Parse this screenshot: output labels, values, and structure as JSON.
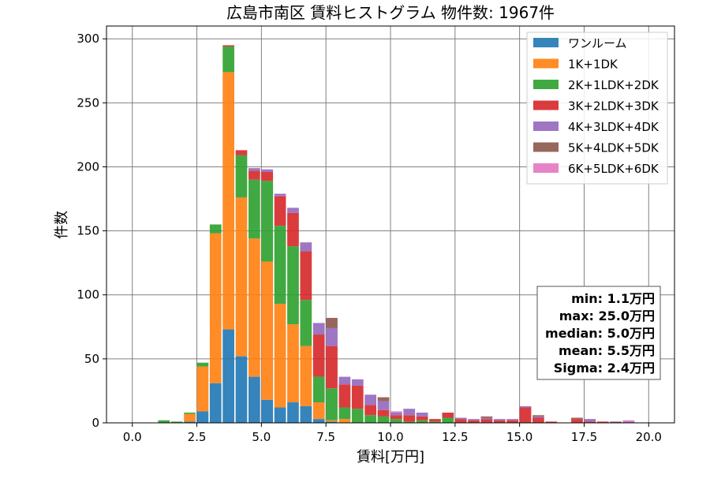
{
  "chart_data": {
    "type": "bar",
    "stacked": true,
    "title": "広島市南区 賃料ヒストグラム 物件数: 1967件",
    "xlabel": "賃料[万円]",
    "ylabel": "件数",
    "xlim": [
      -1.0,
      21.0
    ],
    "ylim": [
      0,
      310
    ],
    "x_ticks": [
      "0.0",
      "2.5",
      "5.0",
      "7.5",
      "10.0",
      "12.5",
      "15.0",
      "17.5",
      "20.0"
    ],
    "x_tick_values": [
      0,
      2.5,
      5,
      7.5,
      10,
      12.5,
      15,
      17.5,
      20
    ],
    "y_ticks": [
      "0",
      "50",
      "100",
      "150",
      "200",
      "250",
      "300"
    ],
    "y_tick_values": [
      0,
      50,
      100,
      150,
      200,
      250,
      300
    ],
    "grid": true,
    "legend_position": "top-right",
    "bin_width": 0.5,
    "bin_starts": [
      1.0,
      1.5,
      2.0,
      2.5,
      3.0,
      3.5,
      4.0,
      4.5,
      5.0,
      5.5,
      6.0,
      6.5,
      7.0,
      7.5,
      8.0,
      8.5,
      9.0,
      9.5,
      10.0,
      10.5,
      11.0,
      11.5,
      12.0,
      12.5,
      13.0,
      13.5,
      14.0,
      14.5,
      15.0,
      15.5,
      16.0,
      16.5,
      17.0,
      17.5,
      18.0,
      18.5,
      19.0,
      19.5
    ],
    "series": [
      {
        "name": "ワンルーム",
        "color": "#1f77b4",
        "values": [
          0,
          0,
          1,
          9,
          31,
          73,
          52,
          36,
          18,
          12,
          16,
          13,
          3,
          1,
          0,
          0,
          0,
          0,
          0,
          0,
          0,
          0,
          0,
          0,
          0,
          0,
          0,
          0,
          0,
          0,
          0,
          0,
          0,
          0,
          0,
          0,
          0,
          0
        ]
      },
      {
        "name": "1K+1DK",
        "color": "#ff7f0e",
        "values": [
          0,
          0,
          6,
          35,
          117,
          201,
          124,
          108,
          108,
          81,
          61,
          47,
          13,
          1,
          3,
          0,
          0,
          0,
          0,
          0,
          0,
          0,
          0,
          0,
          0,
          0,
          0,
          0,
          0,
          0,
          0,
          0,
          0,
          0,
          0,
          0,
          0,
          0
        ]
      },
      {
        "name": "2K+1LDK+2DK",
        "color": "#2ca02c",
        "values": [
          2,
          1,
          1,
          3,
          7,
          20,
          33,
          46,
          63,
          61,
          61,
          36,
          20,
          25,
          9,
          11,
          6,
          5,
          3,
          1,
          2,
          1,
          4,
          0,
          0,
          0,
          0,
          0,
          0,
          0,
          0,
          0,
          0,
          0,
          0,
          0,
          0,
          0
        ]
      },
      {
        "name": "3K+2LDK+3DK",
        "color": "#d62728",
        "values": [
          0,
          0,
          0,
          0,
          0,
          1,
          4,
          7,
          7,
          23,
          26,
          38,
          33,
          33,
          18,
          18,
          8,
          5,
          3,
          5,
          3,
          2,
          4,
          3,
          2,
          3,
          2,
          2,
          12,
          4,
          1,
          0,
          3,
          1,
          1,
          0,
          0,
          0
        ]
      },
      {
        "name": "4K+3LDK+4DK",
        "color": "#9467bd",
        "values": [
          0,
          0,
          0,
          0,
          0,
          0,
          0,
          2,
          2,
          2,
          4,
          7,
          9,
          14,
          6,
          5,
          8,
          7,
          2,
          5,
          3,
          0,
          0,
          1,
          1,
          1,
          1,
          1,
          1,
          1,
          0,
          0,
          0,
          2,
          0,
          0,
          1,
          0
        ]
      },
      {
        "name": "5K+4LDK+5DK",
        "color": "#8c564b",
        "values": [
          0,
          0,
          0,
          0,
          0,
          0,
          0,
          0,
          0,
          0,
          0,
          0,
          0,
          8,
          0,
          0,
          0,
          3,
          0,
          0,
          0,
          0,
          0,
          0,
          0,
          1,
          0,
          0,
          0,
          1,
          0,
          0,
          1,
          0,
          0,
          1,
          0,
          0
        ]
      },
      {
        "name": "6K+5LDK+6DK",
        "color": "#e377c2",
        "values": [
          0,
          0,
          0,
          0,
          0,
          0,
          0,
          0,
          0,
          0,
          0,
          0,
          0,
          0,
          0,
          0,
          0,
          0,
          1,
          0,
          0,
          0,
          0,
          0,
          0,
          0,
          0,
          0,
          0,
          0,
          0,
          0,
          0,
          0,
          0,
          0,
          1,
          0
        ]
      }
    ],
    "annotation": [
      "min: 1.1万円",
      "max: 25.0万円",
      "median: 5.0万円",
      "mean: 5.5万円",
      "Sigma: 2.4万円"
    ]
  }
}
